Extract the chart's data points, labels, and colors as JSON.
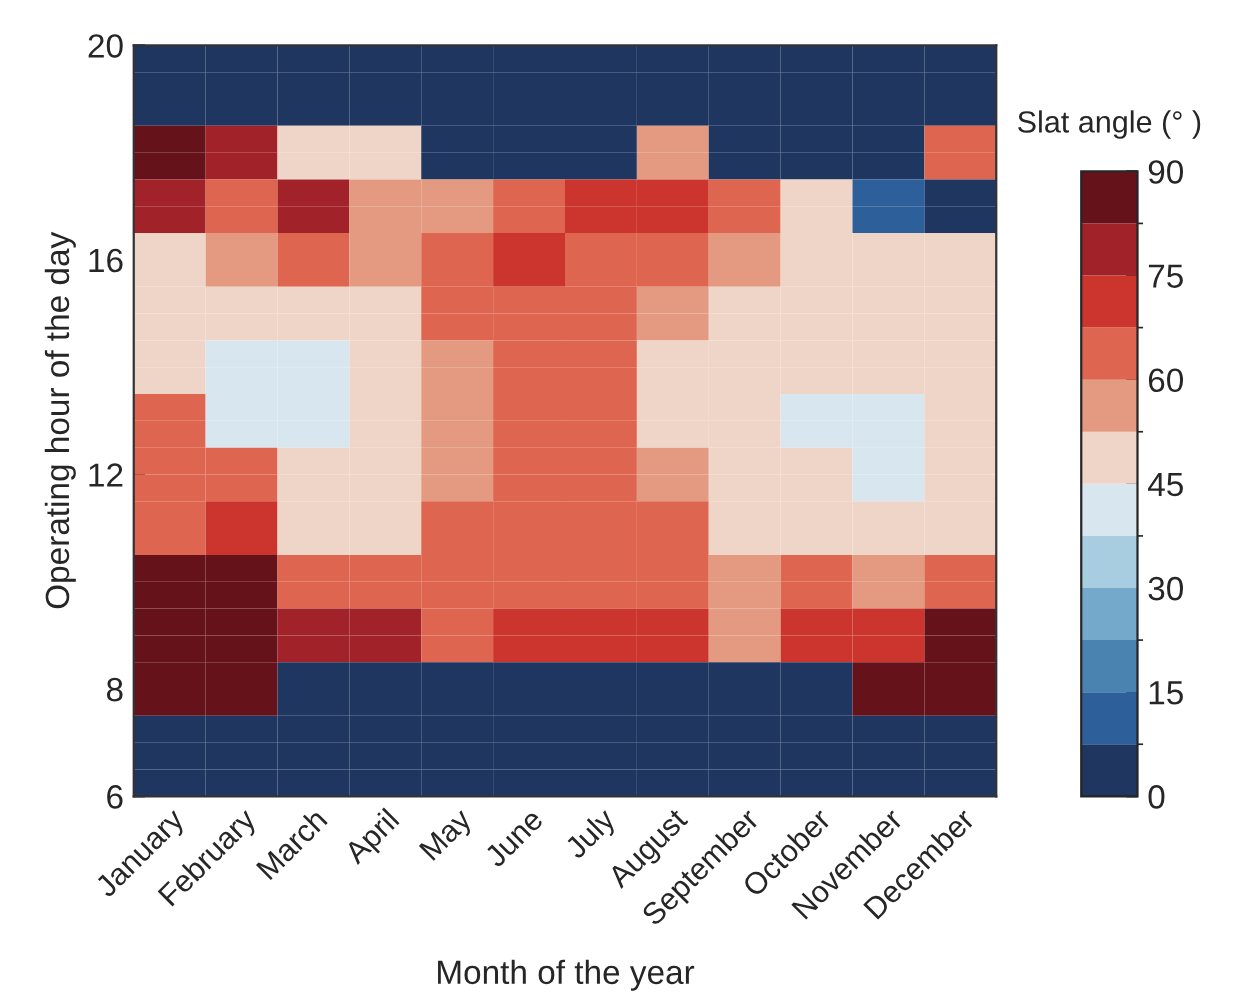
{
  "chart_data": {
    "type": "heatmap",
    "xlabel": "Month of the year",
    "ylabel": "Operating hour of the day",
    "clabel": "Slat angle (° )",
    "categories": [
      "January",
      "February",
      "March",
      "April",
      "May",
      "June",
      "July",
      "August",
      "September",
      "October",
      "November",
      "December"
    ],
    "ylim": [
      6,
      20
    ],
    "yticks": [
      6,
      8,
      12,
      16,
      20
    ],
    "cells": [
      [
        0,
        0,
        0,
        0,
        0,
        0,
        0,
        0,
        0,
        0,
        0,
        0
      ],
      [
        0,
        0,
        0,
        0,
        0,
        0,
        0,
        0,
        0,
        0,
        0,
        0
      ],
      [
        0,
        0,
        0,
        0,
        0,
        0,
        0,
        0,
        0,
        0,
        0,
        0
      ],
      [
        90,
        80,
        50,
        50,
        0,
        0,
        0,
        55,
        0,
        0,
        0,
        65
      ],
      [
        90,
        80,
        50,
        50,
        0,
        0,
        0,
        55,
        0,
        0,
        0,
        65
      ],
      [
        80,
        65,
        80,
        55,
        55,
        65,
        70,
        70,
        65,
        50,
        10,
        0
      ],
      [
        80,
        65,
        80,
        55,
        55,
        65,
        70,
        70,
        65,
        50,
        10,
        0
      ],
      [
        50,
        55,
        65,
        55,
        65,
        70,
        65,
        65,
        55,
        50,
        50,
        50
      ],
      [
        50,
        55,
        65,
        55,
        65,
        70,
        65,
        65,
        55,
        50,
        50,
        50
      ],
      [
        50,
        50,
        50,
        50,
        65,
        65,
        65,
        55,
        50,
        50,
        50,
        50
      ],
      [
        50,
        50,
        50,
        50,
        65,
        65,
        65,
        55,
        50,
        50,
        50,
        50
      ],
      [
        50,
        40,
        40,
        50,
        55,
        65,
        65,
        50,
        50,
        50,
        50,
        50
      ],
      [
        50,
        40,
        40,
        50,
        55,
        65,
        65,
        50,
        50,
        50,
        50,
        50
      ],
      [
        65,
        40,
        40,
        50,
        55,
        65,
        65,
        50,
        50,
        40,
        40,
        50
      ],
      [
        65,
        40,
        40,
        50,
        55,
        65,
        65,
        50,
        50,
        40,
        40,
        50
      ],
      [
        65,
        65,
        50,
        50,
        55,
        65,
        65,
        55,
        50,
        50,
        40,
        50
      ],
      [
        65,
        65,
        50,
        50,
        55,
        65,
        65,
        55,
        50,
        50,
        40,
        50
      ],
      [
        65,
        70,
        50,
        50,
        65,
        65,
        65,
        65,
        50,
        50,
        50,
        50
      ],
      [
        65,
        70,
        50,
        50,
        65,
        65,
        65,
        65,
        50,
        50,
        50,
        50
      ],
      [
        90,
        90,
        65,
        65,
        65,
        65,
        65,
        65,
        55,
        65,
        55,
        65
      ],
      [
        90,
        90,
        65,
        65,
        65,
        65,
        65,
        65,
        55,
        65,
        55,
        65
      ],
      [
        90,
        90,
        80,
        80,
        65,
        70,
        70,
        70,
        55,
        70,
        70,
        90
      ],
      [
        90,
        90,
        80,
        80,
        65,
        70,
        70,
        70,
        55,
        70,
        70,
        90
      ],
      [
        90,
        90,
        0,
        0,
        0,
        0,
        0,
        0,
        0,
        0,
        90,
        90
      ],
      [
        90,
        90,
        0,
        0,
        0,
        0,
        0,
        0,
        0,
        0,
        90,
        90
      ],
      [
        0,
        0,
        0,
        0,
        0,
        0,
        0,
        0,
        0,
        0,
        0,
        0
      ],
      [
        0,
        0,
        0,
        0,
        0,
        0,
        0,
        0,
        0,
        0,
        0,
        0
      ],
      [
        0,
        0,
        0,
        0,
        0,
        0,
        0,
        0,
        0,
        0,
        0,
        0
      ]
    ],
    "clim": [
      0,
      90
    ],
    "cticks": [
      0,
      15,
      30,
      45,
      60,
      75,
      90
    ],
    "colors": [
      "#1f3660",
      "#2d5f9a",
      "#4a82b0",
      "#74a9cb",
      "#a9cde0",
      "#d7e6ef",
      "#efd5c8",
      "#e39a80",
      "#de6550",
      "#cc352d",
      "#a12228",
      "#66121a"
    ],
    "grid": false
  }
}
